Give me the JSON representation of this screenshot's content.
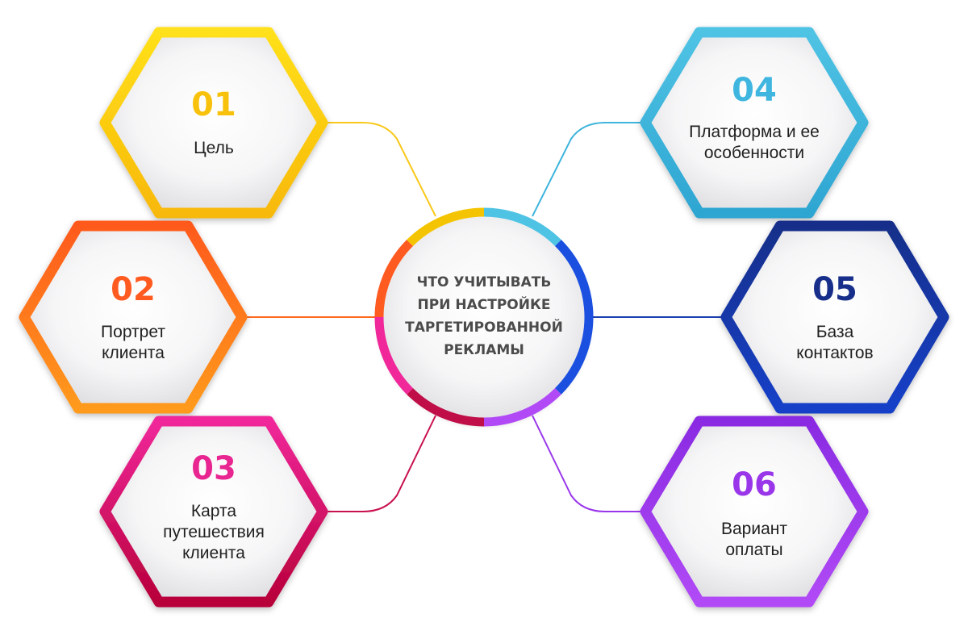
{
  "center": {
    "lines": [
      "ЧТО УЧИТЫВАТЬ",
      "ПРИ НАСТРОЙКЕ",
      "ТАРГЕТИРОВАННОЙ",
      "РЕКЛАМЫ"
    ]
  },
  "nodes": [
    {
      "number": "01",
      "lines": [
        "Цель"
      ],
      "color_a": "#ffe01a",
      "color_b": "#f8b908"
    },
    {
      "number": "02",
      "lines": [
        "Портрет",
        "клиента"
      ],
      "color_a": "#ff5a1f",
      "color_b": "#ff9a1a"
    },
    {
      "number": "03",
      "lines": [
        "Карта",
        "путешествия",
        "клиента"
      ],
      "color_a": "#f0289a",
      "color_b": "#b8003a"
    },
    {
      "number": "04",
      "lines": [
        "Платформа и ее",
        "особенности"
      ],
      "color_a": "#4fc3e4",
      "color_b": "#2ea6d2"
    },
    {
      "number": "05",
      "lines": [
        "База",
        "контактов"
      ],
      "color_a": "#172f8a",
      "color_b": "#1440c8"
    },
    {
      "number": "06",
      "lines": [
        "Вариант",
        "оплаты"
      ],
      "color_a": "#8a2be2",
      "color_b": "#b14af6"
    }
  ],
  "ring_colors": [
    "#f5c400",
    "#ff5a1f",
    "#f0289a",
    "#c00f48",
    "#4fc3e4",
    "#1a4fe0",
    "#8a2be2",
    "#b14af6"
  ]
}
